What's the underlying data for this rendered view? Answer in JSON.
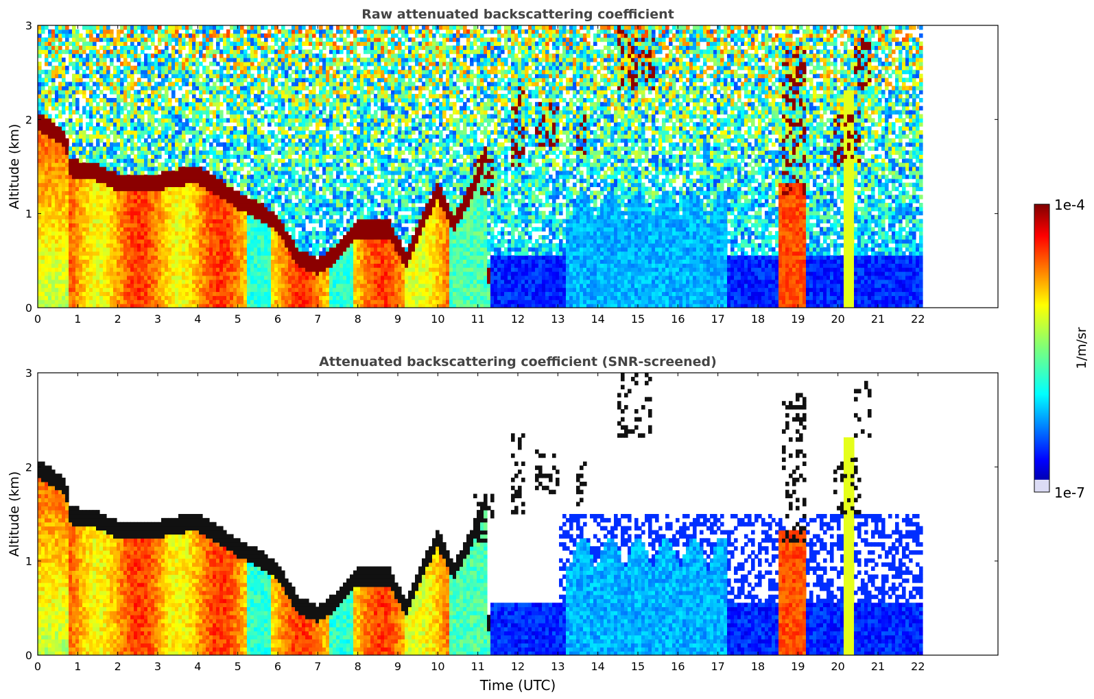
{
  "chart_data": [
    {
      "type": "heatmap",
      "title": "Raw attenuated backscattering coefficient",
      "xlabel": "",
      "ylabel": "Altitude (km)",
      "xlim": [
        0,
        24
      ],
      "ylim": [
        0,
        3
      ],
      "xticks": [
        "0",
        "1",
        "2",
        "3",
        "4",
        "5",
        "6",
        "7",
        "8",
        "9",
        "10",
        "11",
        "12",
        "13",
        "14",
        "15",
        "16",
        "17",
        "18",
        "19",
        "20",
        "21",
        "22"
      ],
      "yticks": [
        "0",
        "1",
        "2",
        "3"
      ],
      "data_end_time": 22.15,
      "screened": false
    },
    {
      "type": "heatmap",
      "title": "Attenuated backscattering coefficient (SNR-screened)",
      "xlabel": "Time (UTC)",
      "ylabel": "Altitude (km)",
      "xlim": [
        0,
        24
      ],
      "ylim": [
        0,
        3
      ],
      "xticks": [
        "0",
        "1",
        "2",
        "3",
        "4",
        "5",
        "6",
        "7",
        "8",
        "9",
        "10",
        "11",
        "12",
        "13",
        "14",
        "15",
        "16",
        "17",
        "18",
        "19",
        "20",
        "21",
        "22"
      ],
      "yticks": [
        "0",
        "1",
        "2",
        "3"
      ],
      "data_end_time": 22.15,
      "screened": true
    }
  ],
  "colorbar": {
    "max_label": "1e-4",
    "min_label": "1e-7",
    "unit_label": "1/m/sr",
    "colormap": "jet"
  },
  "features": {
    "aerosol_layer_top_km": [
      [
        0,
        2.0
      ],
      [
        0.7,
        1.8
      ],
      [
        0.8,
        1.5
      ],
      [
        1.5,
        1.45
      ],
      [
        2.0,
        1.35
      ],
      [
        3.0,
        1.35
      ],
      [
        3.5,
        1.4
      ],
      [
        4.0,
        1.42
      ],
      [
        4.5,
        1.3
      ],
      [
        5.0,
        1.15
      ],
      [
        5.5,
        1.05
      ],
      [
        6.0,
        0.9
      ],
      [
        6.5,
        0.55
      ],
      [
        7.0,
        0.45
      ],
      [
        7.5,
        0.6
      ],
      [
        8.0,
        0.85
      ],
      [
        8.8,
        0.85
      ],
      [
        9.2,
        0.5
      ],
      [
        9.7,
        1.0
      ],
      [
        10.0,
        1.25
      ],
      [
        10.4,
        0.9
      ],
      [
        10.9,
        1.3
      ],
      [
        11.2,
        1.65
      ]
    ]
  }
}
